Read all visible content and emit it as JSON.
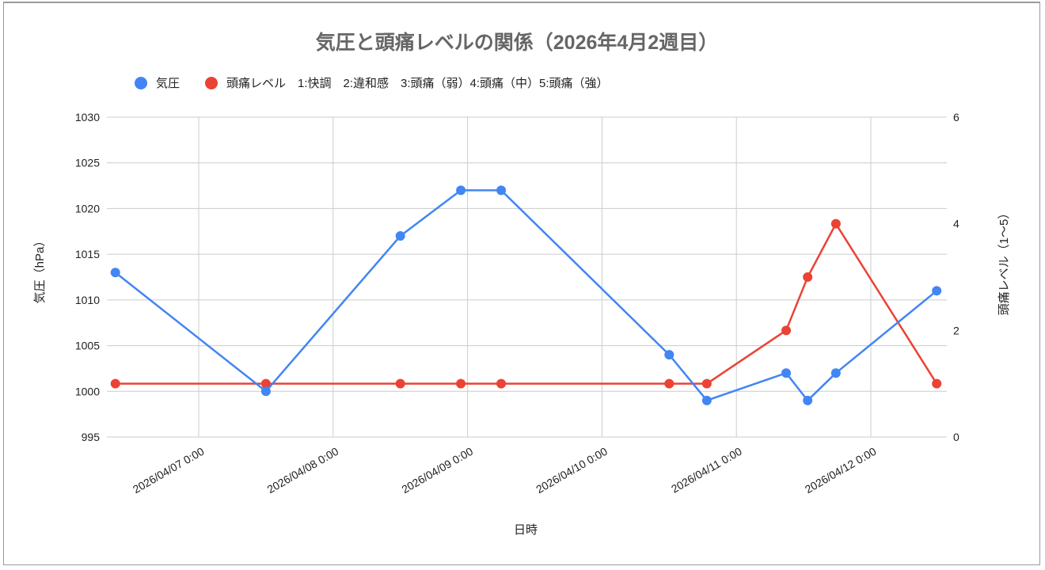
{
  "chart_data": {
    "type": "line",
    "title": "気圧と頭痛レベルの関係（2026年4月2週目）",
    "xlabel": "日時",
    "ylabel_left": "気圧（hPa）",
    "ylabel_right": "頭痛レベル（1〜5）",
    "ylim_left": [
      995,
      1030
    ],
    "ylim_right": [
      0,
      6
    ],
    "left_ticks": [
      "995",
      "1000",
      "1005",
      "1010",
      "1015",
      "1020",
      "1025",
      "1030"
    ],
    "right_ticks": [
      "0",
      "2",
      "4",
      "6"
    ],
    "x_ticks": [
      "2026/04/07 0:00",
      "2026/04/08 0:00",
      "2026/04/09 0:00",
      "2026/04/10 0:00",
      "2026/04/11 0:00",
      "2026/04/12 0:00"
    ],
    "grid": true,
    "legend_position": "top",
    "x": [
      "2026/04/06 9:00",
      "2026/04/07 12:00",
      "2026/04/08 12:00",
      "2026/04/08 23:00",
      "2026/04/09 6:00",
      "2026/04/10 12:00",
      "2026/04/10 19:00",
      "2026/04/11 9:00",
      "2026/04/11 13:00",
      "2026/04/11 18:00",
      "2026/04/12 12:00"
    ],
    "x_days_from_0407": [
      -0.62,
      0.5,
      1.5,
      1.95,
      2.25,
      3.5,
      3.78,
      4.37,
      4.53,
      4.74,
      5.49
    ],
    "series": [
      {
        "name": "気圧",
        "axis": "left",
        "color": "#4285f4",
        "values": [
          1013,
          1000,
          1017,
          1022,
          1022,
          1004,
          999,
          1002,
          999,
          1002,
          1011
        ]
      },
      {
        "name": "頭痛レベル　1:快調　2:違和感　3:頭痛（弱）4:頭痛（中）5:頭痛（強）",
        "axis": "right",
        "color": "#ea4335",
        "values": [
          1,
          1,
          1,
          1,
          1,
          1,
          1,
          2,
          3,
          4,
          1
        ],
        "x_days_from_0407": [
          -0.62,
          0.5,
          1.5,
          1.95,
          2.25,
          3.5,
          3.78,
          4.37,
          4.53,
          4.74,
          5.49
        ]
      }
    ]
  },
  "legend": [
    {
      "label": "気圧",
      "color": "#4285f4"
    },
    {
      "label": "頭痛レベル　1:快調　2:違和感　3:頭痛（弱）4:頭痛（中）5:頭痛（強）",
      "color": "#ea4335"
    }
  ]
}
